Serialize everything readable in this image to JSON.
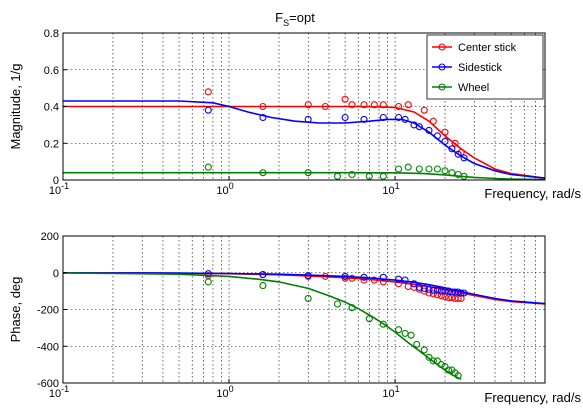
{
  "figure": {
    "title": "F",
    "title_sub": "S",
    "title_rest": "=opt"
  },
  "colors": {
    "Center stick": "#ff0000",
    "Sidestick": "#0000ff",
    "Wheel": "#008000",
    "grid": "#000000",
    "axes": "#000000",
    "background": "#ffffff"
  },
  "chart_data": [
    {
      "type": "line",
      "panel": "magnitude",
      "xlabel": "Frequency, rad/s",
      "ylabel": "Magnitude, 1/g",
      "xscale": "log",
      "xlim": [
        0.1,
        80
      ],
      "ylim": [
        0,
        0.8
      ],
      "xticks": [
        0.1,
        1,
        10
      ],
      "xtick_labels": [
        [
          "10",
          "-1"
        ],
        [
          "10",
          "0"
        ],
        [
          "10",
          "1"
        ]
      ],
      "yticks": [
        0,
        0.2,
        0.4,
        0.6,
        0.8
      ],
      "ytick_labels": [
        "0",
        "0.2",
        "0.4",
        "0.6",
        "0.8"
      ],
      "grid": true,
      "legend": {
        "position": "top-right",
        "entries": [
          "Center stick",
          "Sidestick",
          "Wheel"
        ]
      },
      "series": [
        {
          "name": "Center stick",
          "line": {
            "x": [
              0.1,
              1,
              3,
              6,
              10,
              13,
              16,
              20,
              25,
              30,
              40,
              50,
              80
            ],
            "y": [
              0.4,
              0.4,
              0.4,
              0.4,
              0.395,
              0.37,
              0.32,
              0.24,
              0.17,
              0.12,
              0.06,
              0.035,
              0.01
            ]
          },
          "markers": {
            "x": [
              0.75,
              1.6,
              3.0,
              3.8,
              5.0,
              5.5,
              6.5,
              7.5,
              8.5,
              10.5,
              12,
              15,
              17,
              20,
              23,
              25
            ],
            "y": [
              0.48,
              0.4,
              0.41,
              0.4,
              0.44,
              0.41,
              0.41,
              0.41,
              0.41,
              0.4,
              0.41,
              0.38,
              0.32,
              0.26,
              0.2,
              0.15
            ]
          }
        },
        {
          "name": "Sidestick",
          "line": {
            "x": [
              0.1,
              0.5,
              0.8,
              1.0,
              1.3,
              1.8,
              2.5,
              3.5,
              5,
              7,
              9,
              11,
              13,
              16,
              20,
              25,
              30,
              40,
              50,
              80
            ],
            "y": [
              0.43,
              0.43,
              0.42,
              0.4,
              0.37,
              0.34,
              0.32,
              0.31,
              0.31,
              0.32,
              0.33,
              0.33,
              0.31,
              0.26,
              0.19,
              0.13,
              0.09,
              0.05,
              0.03,
              0.01
            ]
          },
          "markers": {
            "x": [
              0.75,
              1.6,
              3.0,
              5.0,
              6.5,
              8.5,
              10.5,
              11.5,
              13,
              14,
              16,
              18,
              20,
              22,
              24,
              26
            ],
            "y": [
              0.38,
              0.34,
              0.33,
              0.34,
              0.33,
              0.34,
              0.34,
              0.33,
              0.3,
              0.29,
              0.27,
              0.24,
              0.21,
              0.17,
              0.14,
              0.12
            ]
          }
        },
        {
          "name": "Wheel",
          "line": {
            "x": [
              0.1,
              1,
              5,
              10,
              15,
              20,
              25,
              30,
              40,
              50,
              80
            ],
            "y": [
              0.04,
              0.04,
              0.04,
              0.039,
              0.035,
              0.028,
              0.02,
              0.014,
              0.008,
              0.005,
              0.002
            ]
          },
          "markers": {
            "x": [
              0.75,
              1.6,
              3.0,
              4.5,
              5.5,
              7.0,
              8.5,
              10.5,
              12,
              14,
              16,
              18,
              20,
              22,
              24,
              26
            ],
            "y": [
              0.07,
              0.04,
              0.04,
              0.02,
              0.03,
              0.02,
              0.02,
              0.06,
              0.07,
              0.06,
              0.06,
              0.06,
              0.05,
              0.04,
              0.03,
              0.02
            ]
          }
        }
      ]
    },
    {
      "type": "line",
      "panel": "phase",
      "xlabel": "Frequency, rad/s",
      "ylabel": "Phase, deg",
      "xscale": "log",
      "xlim": [
        0.1,
        80
      ],
      "ylim": [
        -600,
        200
      ],
      "xticks": [
        0.1,
        1,
        10
      ],
      "xtick_labels": [
        [
          "10",
          "-1"
        ],
        [
          "10",
          "0"
        ],
        [
          "10",
          "1"
        ]
      ],
      "yticks": [
        -600,
        -400,
        -200,
        0,
        200
      ],
      "ytick_labels": [
        "-600",
        "-400",
        "-200",
        "0",
        "200"
      ],
      "grid": true,
      "series": [
        {
          "name": "Center stick",
          "line": {
            "x": [
              0.1,
              0.3,
              0.6,
              1,
              2,
              3,
              5,
              7,
              10,
              13,
              16,
              20,
              25,
              30,
              40,
              50,
              80
            ],
            "y": [
              0,
              -1,
              -3,
              -5,
              -11,
              -17,
              -27,
              -36,
              -50,
              -63,
              -76,
              -92,
              -110,
              -124,
              -145,
              -157,
              -170
            ]
          },
          "markers": {
            "x": [
              0.75,
              1.6,
              3.0,
              3.8,
              5.0,
              5.5,
              6.5,
              7.5,
              8.5,
              10.5,
              12,
              13,
              14,
              15,
              16,
              17,
              18,
              19,
              20,
              21,
              22,
              23,
              24,
              25
            ],
            "y": [
              -15,
              -10,
              -20,
              -20,
              -30,
              -30,
              -40,
              -40,
              -50,
              -60,
              -75,
              -80,
              -90,
              -100,
              -110,
              -115,
              -120,
              -125,
              -130,
              -135,
              -135,
              -140,
              -140,
              -140
            ]
          }
        },
        {
          "name": "Sidestick",
          "line": {
            "x": [
              0.1,
              0.5,
              1,
              2,
              3,
              5,
              7,
              10,
              13,
              16,
              20,
              25,
              30,
              40,
              50,
              80
            ],
            "y": [
              0,
              -2,
              -4,
              -8,
              -13,
              -20,
              -28,
              -40,
              -52,
              -65,
              -82,
              -102,
              -118,
              -140,
              -153,
              -168
            ]
          },
          "markers": {
            "x": [
              0.75,
              1.6,
              3.0,
              5.0,
              6.5,
              8.5,
              10.5,
              11.5,
              13,
              14,
              15,
              16,
              17,
              18,
              19,
              20,
              21,
              22,
              23,
              24,
              25,
              26
            ],
            "y": [
              -5,
              -10,
              -15,
              -20,
              -25,
              -25,
              -35,
              -40,
              -60,
              -80,
              -85,
              -90,
              -95,
              -95,
              -100,
              -100,
              -100,
              -105,
              -105,
              -105,
              -110,
              -110
            ]
          }
        },
        {
          "name": "Wheel",
          "line": {
            "x": [
              0.1,
              0.5,
              1,
              1.5,
              2,
              3,
              4,
              5,
              6,
              7,
              8,
              9,
              10,
              12,
              14,
              16,
              18,
              20,
              22,
              25
            ],
            "y": [
              -1,
              -8,
              -20,
              -35,
              -50,
              -85,
              -125,
              -160,
              -195,
              -230,
              -262,
              -293,
              -323,
              -380,
              -425,
              -465,
              -500,
              -530,
              -555,
              -580
            ]
          },
          "markers": {
            "x": [
              0.75,
              1.6,
              3.0,
              4.5,
              5.5,
              7.0,
              8.5,
              10.5,
              11.5,
              12.5,
              13.5,
              15,
              16,
              17,
              18,
              19,
              20,
              21,
              22,
              23,
              24
            ],
            "y": [
              -50,
              -70,
              -140,
              -170,
              -190,
              -250,
              -280,
              -310,
              -330,
              -340,
              -390,
              -420,
              -460,
              -480,
              -480,
              -500,
              -510,
              -530,
              -530,
              -545,
              -560
            ]
          }
        }
      ]
    }
  ]
}
